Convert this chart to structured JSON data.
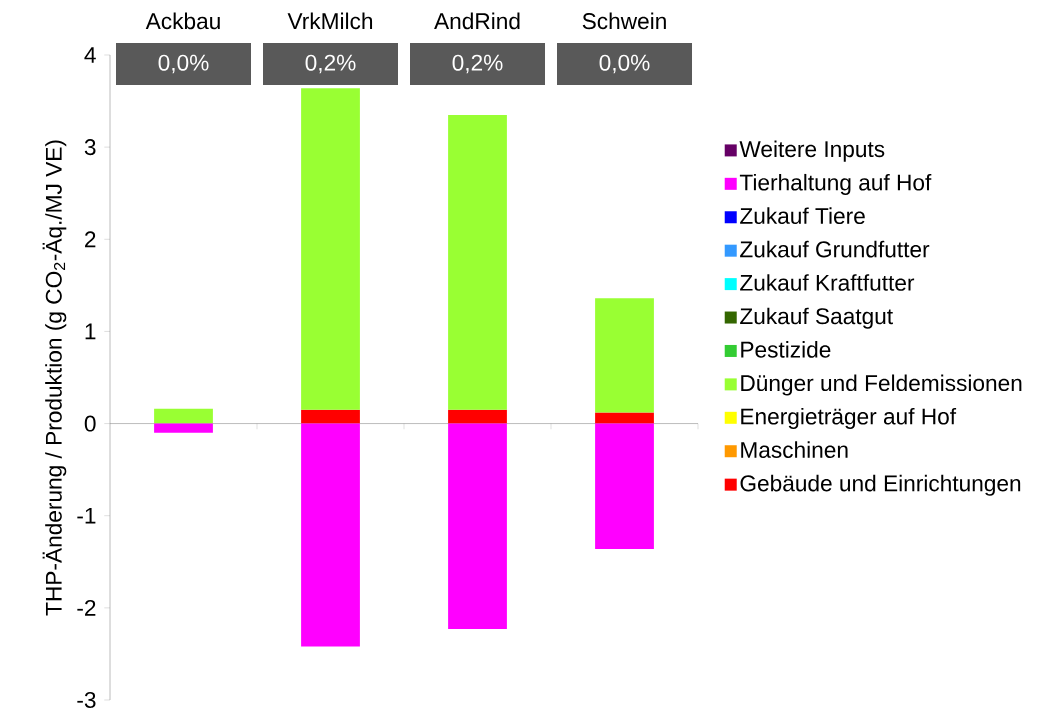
{
  "chart_data": {
    "type": "bar",
    "stacked": true,
    "ylabel": "THP-Änderung / Produktion (g CO$_{2}$-Äq./MJ VE)",
    "categories": [
      "Ackbau",
      "VrkMilch",
      "AndRind",
      "Schwein"
    ],
    "annotations": [
      "0,0%",
      "0,2%",
      "0,2%",
      "0,0%"
    ],
    "ylim": [
      -3,
      4
    ],
    "yticks": [
      -3,
      -2,
      -1,
      0,
      1,
      2,
      3,
      4
    ],
    "legend": "right",
    "series": [
      {
        "name": "Gebäude und Einrichtungen",
        "color": "#ff0000",
        "values": [
          null,
          0.15,
          0.15,
          0.12
        ]
      },
      {
        "name": "Maschinen",
        "color": "#ff9900",
        "values": [
          null,
          null,
          null,
          null
        ]
      },
      {
        "name": "Energieträger auf Hof",
        "color": "#ffff00",
        "values": [
          null,
          null,
          null,
          null
        ]
      },
      {
        "name": "Dünger und Feldemissionen",
        "color": "#99ff33",
        "values": [
          0.16,
          3.49,
          3.2,
          1.24
        ]
      },
      {
        "name": "Pestizide",
        "color": "#33cc33",
        "values": [
          null,
          null,
          null,
          null
        ]
      },
      {
        "name": "Zukauf Saatgut",
        "color": "#336600",
        "values": [
          null,
          null,
          null,
          null
        ]
      },
      {
        "name": "Zukauf Kraftfutter",
        "color": "#00ffff",
        "values": [
          null,
          null,
          null,
          null
        ]
      },
      {
        "name": "Zukauf Grundfutter",
        "color": "#3399ff",
        "values": [
          null,
          null,
          null,
          null
        ]
      },
      {
        "name": "Zukauf Tiere",
        "color": "#0000ff",
        "values": [
          null,
          null,
          null,
          null
        ]
      },
      {
        "name": "Tierhaltung auf Hof",
        "color": "#ff00ff",
        "values": [
          -0.1,
          -2.42,
          -2.23,
          -1.36
        ]
      },
      {
        "name": "Weitere Inputs",
        "color": "#660066",
        "values": [
          null,
          null,
          null,
          null
        ]
      }
    ]
  }
}
